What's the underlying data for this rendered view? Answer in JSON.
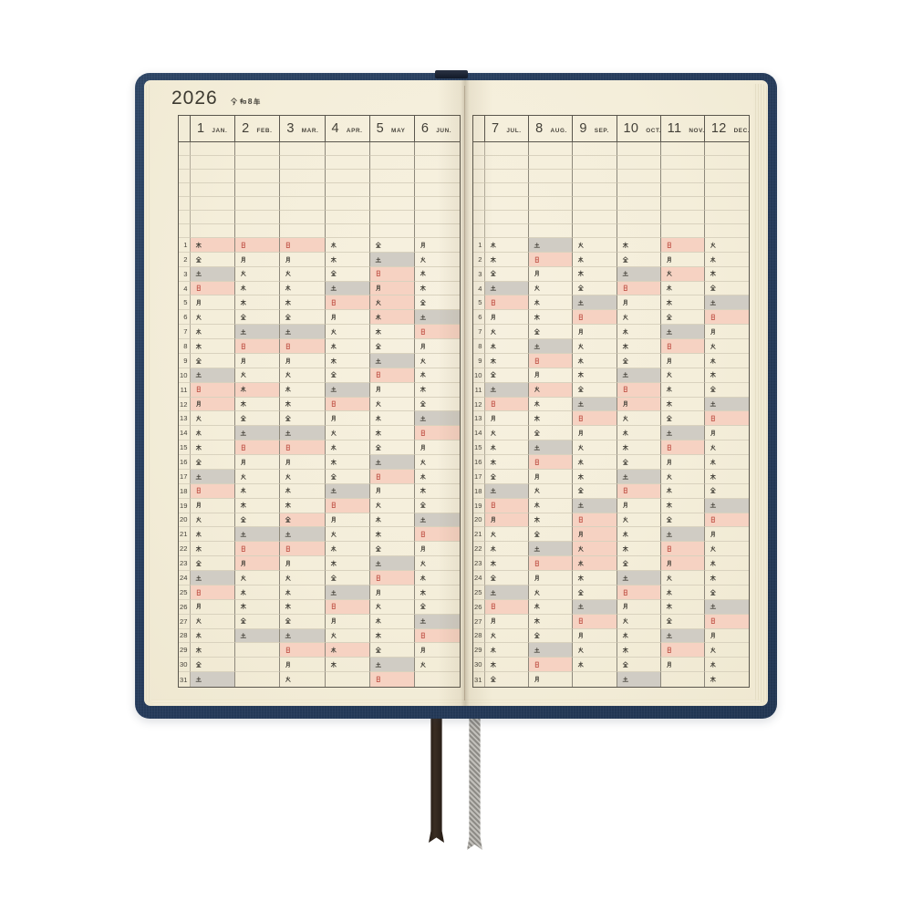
{
  "title": {
    "year": "2026",
    "era": "令和8年"
  },
  "colors": {
    "cover_navy": "#283f60",
    "paper_cream": "#f4eeda",
    "sunday_holiday_bg": "#f6d2c2",
    "saturday_bg": "#d0ccc4",
    "sunday_text_red": "#c2564a",
    "ink": "#45423a",
    "grid_dark": "#5a564d",
    "grid_mid": "#8d887b",
    "grid_light": "#d9d2be"
  },
  "bookmarks": [
    {
      "name": "brown-ribbon",
      "color": "#32281f"
    },
    {
      "name": "gray-braided-ribbon",
      "color": "#a8a6a1"
    }
  ],
  "empty_note_rows": 7,
  "day_rows": 31,
  "pages": [
    {
      "side": "left",
      "months": [
        {
          "num": "1",
          "label": "JAN.",
          "days": [
            "木h",
            "金n",
            "土s",
            "日u",
            "月n",
            "火n",
            "水n",
            "木n",
            "金n",
            "土s",
            "日u",
            "月h",
            "火n",
            "水n",
            "木n",
            "金n",
            "土s",
            "日u",
            "月n",
            "火n",
            "水n",
            "木n",
            "金n",
            "土s",
            "日u",
            "月n",
            "火n",
            "水n",
            "木n",
            "金n",
            "土s"
          ]
        },
        {
          "num": "2",
          "label": "FEB.",
          "days": [
            "日u",
            "月n",
            "火n",
            "水n",
            "木n",
            "金n",
            "土s",
            "日u",
            "月n",
            "火n",
            "水h",
            "木n",
            "金n",
            "土s",
            "日u",
            "月n",
            "火n",
            "水n",
            "木n",
            "金n",
            "土s",
            "日u",
            "月h",
            "火n",
            "水n",
            "木n",
            "金n",
            "土s",
            null,
            null,
            null
          ]
        },
        {
          "num": "3",
          "label": "MAR.",
          "days": [
            "日u",
            "月n",
            "火n",
            "水n",
            "木n",
            "金n",
            "土s",
            "日u",
            "月n",
            "火n",
            "水n",
            "木n",
            "金n",
            "土s",
            "日u",
            "月n",
            "火n",
            "水n",
            "木n",
            "金h",
            "土s",
            "日u",
            "月n",
            "火n",
            "水n",
            "木n",
            "金n",
            "土s",
            "日u",
            "月n",
            "火n"
          ]
        },
        {
          "num": "4",
          "label": "APR.",
          "days": [
            "水n",
            "木n",
            "金n",
            "土s",
            "日u",
            "月n",
            "火n",
            "水n",
            "木n",
            "金n",
            "土s",
            "日u",
            "月n",
            "火n",
            "水n",
            "木n",
            "金n",
            "土s",
            "日u",
            "月n",
            "火n",
            "水n",
            "木n",
            "金n",
            "土s",
            "日u",
            "月n",
            "火n",
            "水h",
            "木n",
            null
          ]
        },
        {
          "num": "5",
          "label": "MAY",
          "days": [
            "金n",
            "土s",
            "日u",
            "月h",
            "火h",
            "水h",
            "木n",
            "金n",
            "土s",
            "日u",
            "月n",
            "火n",
            "水n",
            "木n",
            "金n",
            "土s",
            "日u",
            "月n",
            "火n",
            "水n",
            "木n",
            "金n",
            "土s",
            "日u",
            "月n",
            "火n",
            "水n",
            "木n",
            "金n",
            "土s",
            "日u"
          ]
        },
        {
          "num": "6",
          "label": "JUN.",
          "days": [
            "月n",
            "火n",
            "水n",
            "木n",
            "金n",
            "土s",
            "日u",
            "月n",
            "火n",
            "水n",
            "木n",
            "金n",
            "土s",
            "日u",
            "月n",
            "火n",
            "水n",
            "木n",
            "金n",
            "土s",
            "日u",
            "月n",
            "火n",
            "水n",
            "木n",
            "金n",
            "土s",
            "日u",
            "月n",
            "火n",
            null
          ]
        }
      ]
    },
    {
      "side": "right",
      "months": [
        {
          "num": "7",
          "label": "JUL.",
          "days": [
            "水n",
            "木n",
            "金n",
            "土s",
            "日u",
            "月n",
            "火n",
            "水n",
            "木n",
            "金n",
            "土s",
            "日u",
            "月n",
            "火n",
            "水n",
            "木n",
            "金n",
            "土s",
            "日u",
            "月h",
            "火n",
            "水n",
            "木n",
            "金n",
            "土s",
            "日u",
            "月n",
            "火n",
            "水n",
            "木n",
            "金n"
          ]
        },
        {
          "num": "8",
          "label": "AUG.",
          "days": [
            "土s",
            "日u",
            "月n",
            "火n",
            "水n",
            "木n",
            "金n",
            "土s",
            "日u",
            "月n",
            "火h",
            "水n",
            "木n",
            "金n",
            "土s",
            "日u",
            "月n",
            "火n",
            "水n",
            "木n",
            "金n",
            "土s",
            "日u",
            "月n",
            "火n",
            "水n",
            "木n",
            "金n",
            "土s",
            "日u",
            "月n"
          ]
        },
        {
          "num": "9",
          "label": "SEP.",
          "days": [
            "火n",
            "水n",
            "木n",
            "金n",
            "土s",
            "日u",
            "月n",
            "火n",
            "水n",
            "木n",
            "金n",
            "土s",
            "日u",
            "月n",
            "火n",
            "水n",
            "木n",
            "金n",
            "土s",
            "日u",
            "月h",
            "火h",
            "水h",
            "木n",
            "金n",
            "土s",
            "日u",
            "月n",
            "火n",
            "水n",
            null
          ]
        },
        {
          "num": "10",
          "label": "OCT.",
          "days": [
            "木n",
            "金n",
            "土s",
            "日u",
            "月n",
            "火n",
            "水n",
            "木n",
            "金n",
            "土s",
            "日u",
            "月h",
            "火n",
            "水n",
            "木n",
            "金n",
            "土s",
            "日u",
            "月n",
            "火n",
            "水n",
            "木n",
            "金n",
            "土s",
            "日u",
            "月n",
            "火n",
            "水n",
            "木n",
            "金n",
            "土s"
          ]
        },
        {
          "num": "11",
          "label": "NOV.",
          "days": [
            "日u",
            "月n",
            "火h",
            "水n",
            "木n",
            "金n",
            "土s",
            "日u",
            "月n",
            "火n",
            "水n",
            "木n",
            "金n",
            "土s",
            "日u",
            "月n",
            "火n",
            "水n",
            "木n",
            "金n",
            "土s",
            "日u",
            "月h",
            "火n",
            "水n",
            "木n",
            "金n",
            "土s",
            "日u",
            "月n",
            null
          ]
        },
        {
          "num": "12",
          "label": "DEC.",
          "days": [
            "火n",
            "水n",
            "木n",
            "金n",
            "土s",
            "日u",
            "月n",
            "火n",
            "水n",
            "木n",
            "金n",
            "土s",
            "日u",
            "月n",
            "火n",
            "水n",
            "木n",
            "金n",
            "土s",
            "日u",
            "月n",
            "火n",
            "水n",
            "木n",
            "金n",
            "土s",
            "日u",
            "月n",
            "火n",
            "水n",
            "木n"
          ]
        }
      ]
    }
  ]
}
